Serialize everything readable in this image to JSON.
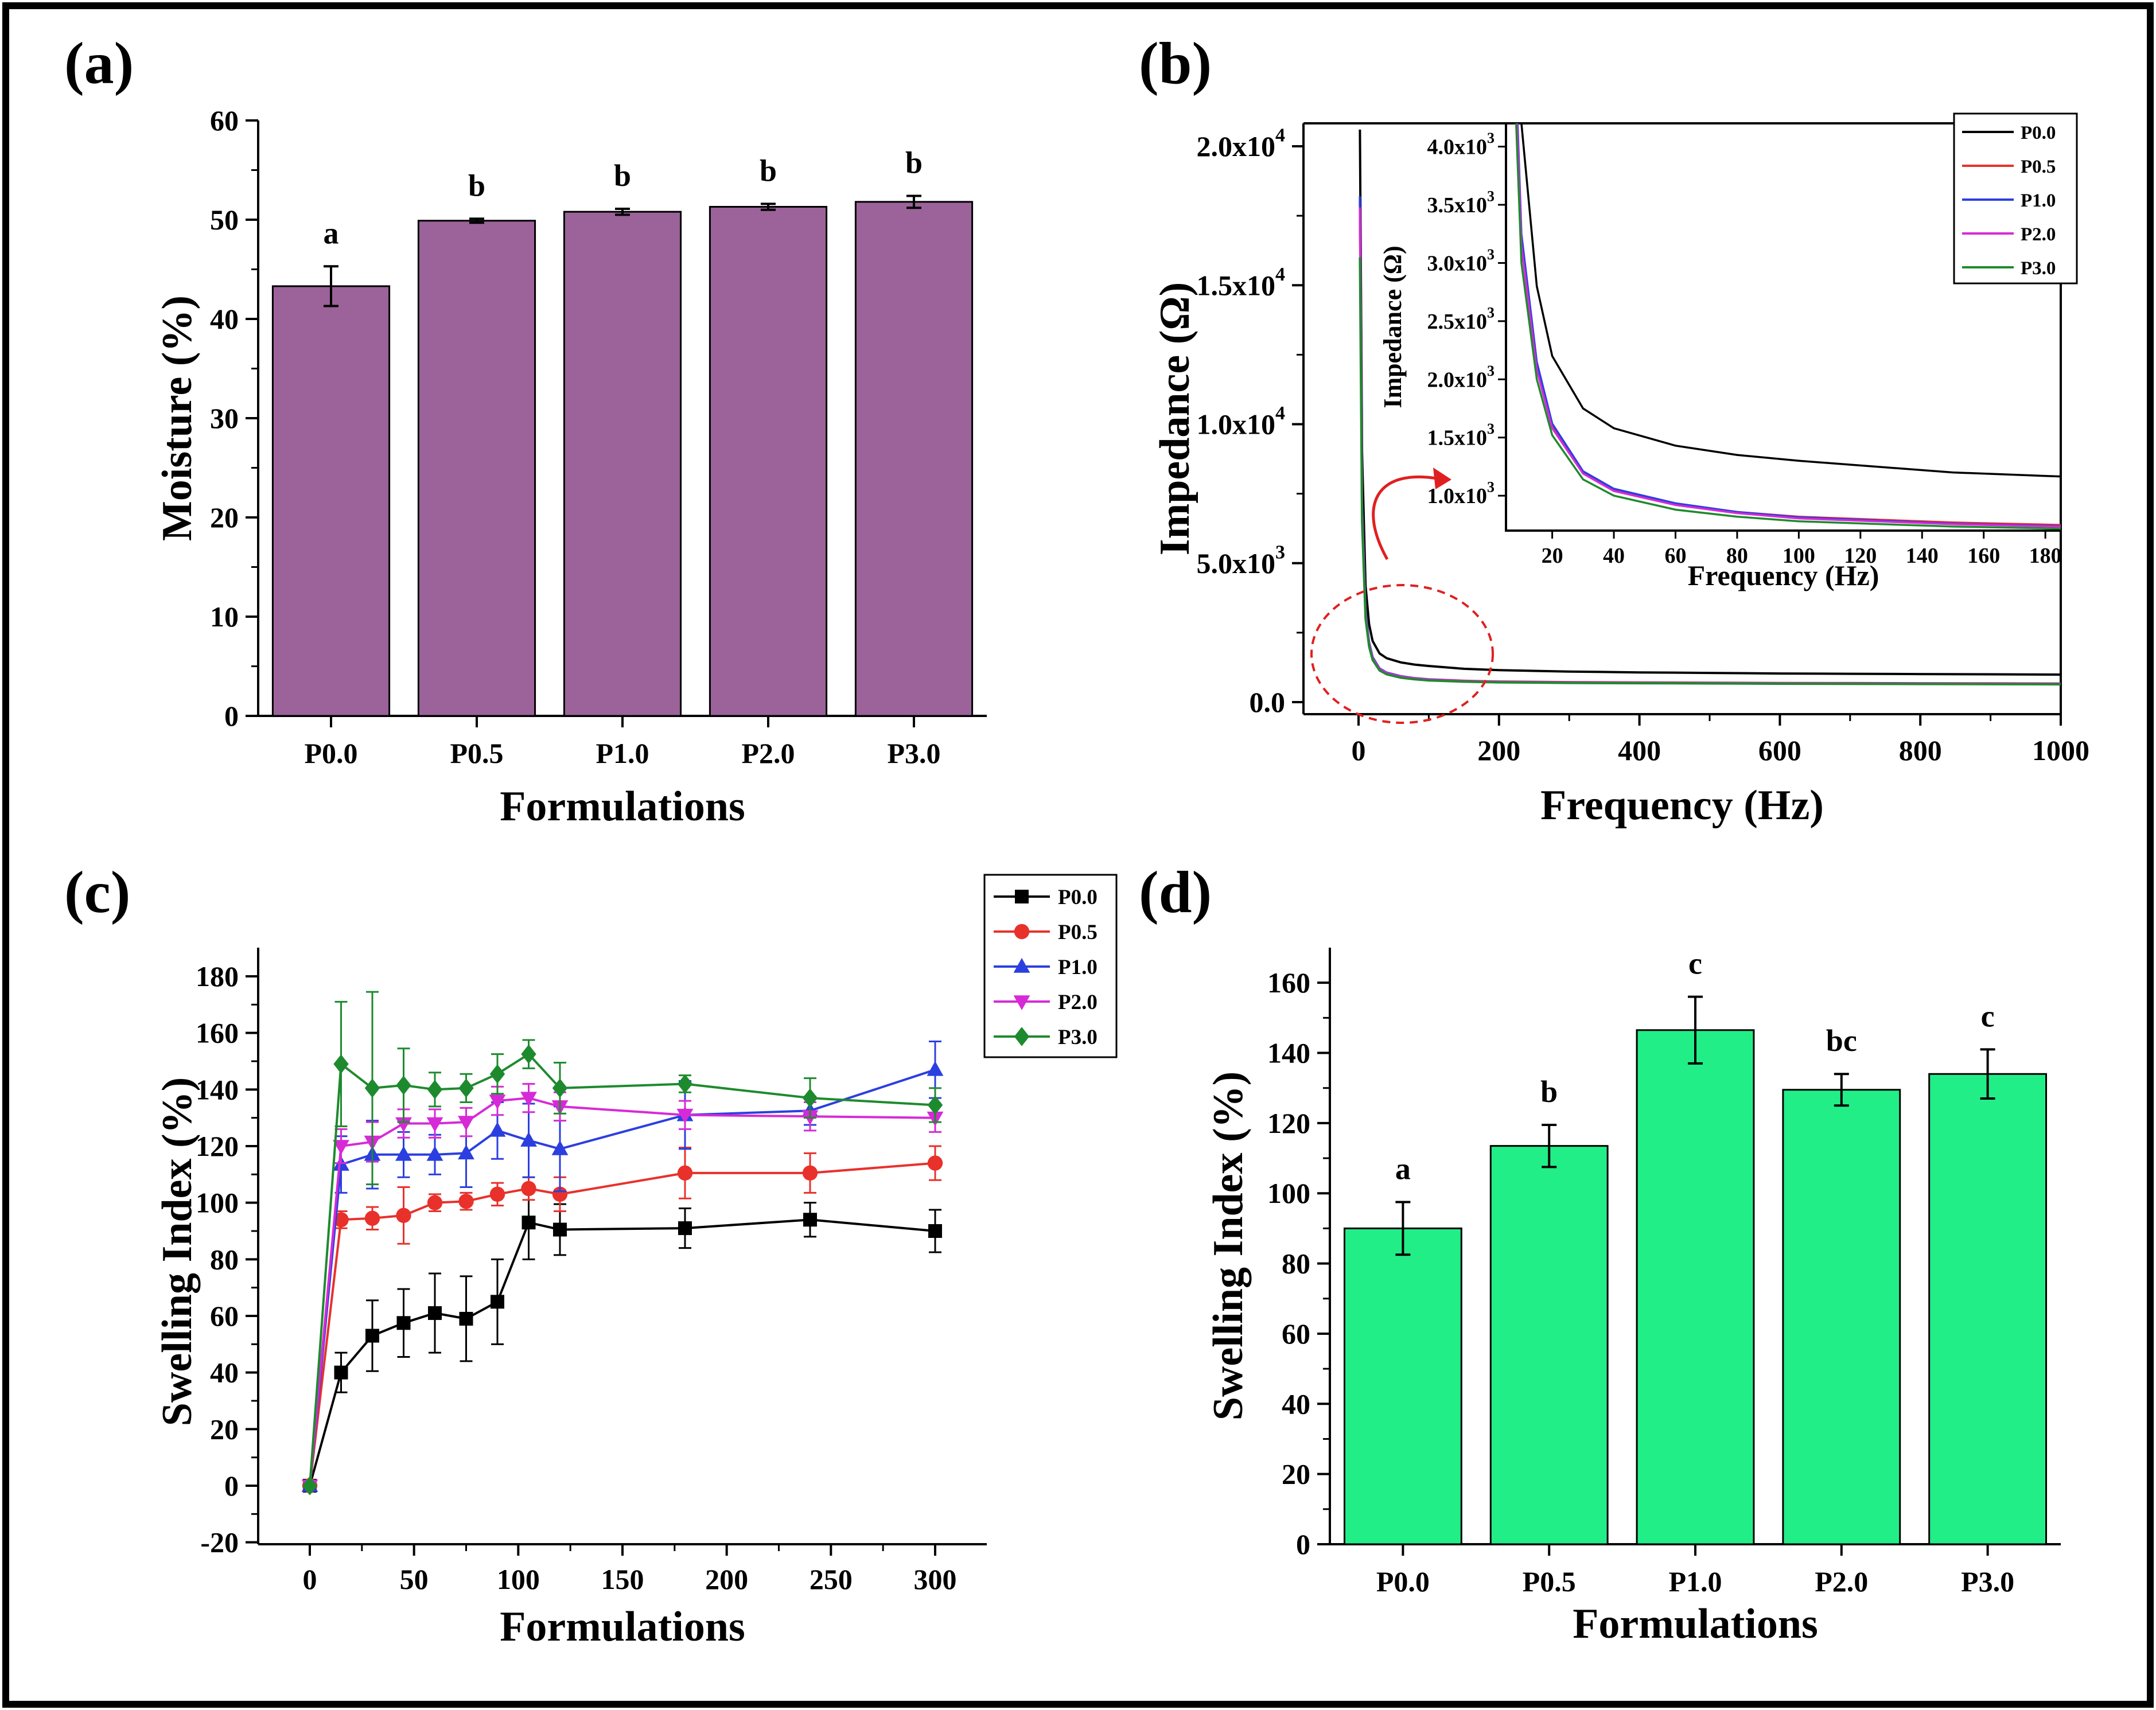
{
  "chart_data": [
    {
      "panel": "(a)",
      "type": "bar",
      "title": "(a)",
      "xlabel": "Formulations",
      "ylabel": "Moisture (%)",
      "ylim": [
        0,
        60
      ],
      "yticks": [
        0,
        10,
        20,
        30,
        40,
        50,
        60
      ],
      "categories": [
        "P0.0",
        "P0.5",
        "P1.0",
        "P2.0",
        "P3.0"
      ],
      "values": [
        43.3,
        49.9,
        50.8,
        51.3,
        51.8
      ],
      "errors": [
        2.0,
        0.2,
        0.3,
        0.3,
        0.6
      ],
      "significance": [
        "a",
        "b",
        "b",
        "b",
        "b"
      ],
      "bar_color": "#9B6399"
    },
    {
      "panel": "(b)",
      "type": "line",
      "title": "(b)",
      "xlabel": "Frequency (Hz)",
      "ylabel": "Impedance (Ω)",
      "xlim": [
        -30,
        1000
      ],
      "ylim": [
        -500,
        21000
      ],
      "xticks": [
        0,
        200,
        400,
        600,
        800,
        1000
      ],
      "yticks": [
        {
          "value": 0,
          "label": "0.0"
        },
        {
          "value": 5000,
          "label": "5.0x10",
          "exp": "3"
        },
        {
          "value": 10000,
          "label": "1.0x10",
          "exp": "4"
        },
        {
          "value": 15000,
          "label": "1.5x10",
          "exp": "4"
        },
        {
          "value": 20000,
          "label": "2.0x10",
          "exp": "4"
        }
      ],
      "series": [
        {
          "name": "P0.0",
          "color": "#000000",
          "x": [
            2,
            5,
            10,
            15,
            20,
            30,
            40,
            60,
            80,
            100,
            150,
            200,
            300,
            400,
            500,
            600,
            700,
            800,
            900,
            1000
          ],
          "y": [
            20600,
            9000,
            4200,
            2800,
            2200,
            1750,
            1580,
            1430,
            1350,
            1300,
            1200,
            1150,
            1100,
            1070,
            1050,
            1030,
            1020,
            1010,
            1000,
            990
          ]
        },
        {
          "name": "P0.5",
          "color": "#E8312B",
          "x": [
            2,
            5,
            10,
            15,
            20,
            30,
            40,
            60,
            80,
            100,
            150,
            200,
            300,
            400,
            500,
            600,
            700,
            800,
            900,
            1000
          ],
          "y": [
            18000,
            7000,
            3200,
            2100,
            1600,
            1200,
            1050,
            930,
            860,
            820,
            770,
            740,
            720,
            710,
            700,
            690,
            685,
            680,
            675,
            670
          ]
        },
        {
          "name": "P1.0",
          "color": "#2B3FE0",
          "x": [
            2,
            5,
            10,
            15,
            20,
            30,
            40,
            60,
            80,
            100,
            150,
            200,
            300,
            400,
            500,
            600,
            700,
            800,
            900,
            1000
          ],
          "y": [
            18200,
            7100,
            3250,
            2150,
            1620,
            1210,
            1060,
            935,
            860,
            815,
            760,
            730,
            710,
            700,
            690,
            680,
            675,
            670,
            665,
            660
          ]
        },
        {
          "name": "P2.0",
          "color": "#D62AD6",
          "x": [
            2,
            5,
            10,
            15,
            20,
            30,
            40,
            60,
            80,
            100,
            150,
            200,
            300,
            400,
            500,
            600,
            700,
            800,
            900,
            1000
          ],
          "y": [
            17800,
            6900,
            3150,
            2080,
            1580,
            1190,
            1040,
            920,
            850,
            805,
            755,
            725,
            705,
            695,
            685,
            675,
            670,
            665,
            660,
            655
          ]
        },
        {
          "name": "P3.0",
          "color": "#1E8A2E",
          "x": [
            2,
            5,
            10,
            15,
            20,
            30,
            40,
            60,
            80,
            100,
            150,
            200,
            300,
            400,
            500,
            600,
            700,
            800,
            900,
            1000
          ],
          "y": [
            16000,
            6500,
            3000,
            2000,
            1520,
            1140,
            1000,
            880,
            820,
            780,
            735,
            710,
            690,
            680,
            670,
            660,
            655,
            650,
            645,
            640
          ]
        }
      ],
      "inset": {
        "xlabel": "Frequency (Hz)",
        "ylabel": "Impedance (Ω)",
        "xlim": [
          5,
          185
        ],
        "ylim": [
          700,
          4200
        ],
        "xticks": [
          20,
          40,
          60,
          80,
          100,
          120,
          140,
          160,
          180
        ],
        "yticks": [
          {
            "value": 1000,
            "label": "1.0x10",
            "exp": "3"
          },
          {
            "value": 1500,
            "label": "1.5x10",
            "exp": "3"
          },
          {
            "value": 2000,
            "label": "2.0x10",
            "exp": "3"
          },
          {
            "value": 2500,
            "label": "2.5x10",
            "exp": "3"
          },
          {
            "value": 3000,
            "label": "3.0x10",
            "exp": "3"
          },
          {
            "value": 3500,
            "label": "3.5x10",
            "exp": "3"
          },
          {
            "value": 4000,
            "label": "4.0x10",
            "exp": "3"
          }
        ]
      },
      "legend": [
        "P0.0",
        "P0.5",
        "P1.0",
        "P2.0",
        "P3.0"
      ]
    },
    {
      "panel": "(c)",
      "type": "line",
      "title": "(c)",
      "xlabel": "Formulations",
      "ylabel": "Swelling Index (%)",
      "xlim": [
        -25,
        310
      ],
      "ylim": [
        -20,
        190
      ],
      "xticks": [
        0,
        50,
        100,
        150,
        200,
        250,
        300
      ],
      "yticks": [
        -20,
        0,
        20,
        40,
        60,
        80,
        100,
        120,
        140,
        160,
        180
      ],
      "x": [
        0,
        15,
        30,
        45,
        60,
        75,
        90,
        105,
        120,
        180,
        240,
        300
      ],
      "series": [
        {
          "name": "P0.0",
          "color": "#000000",
          "marker": "square",
          "values": [
            0,
            40,
            53,
            57.5,
            61,
            59,
            65,
            93,
            90.5,
            91,
            94,
            90
          ],
          "errors": [
            0,
            7,
            12.5,
            12,
            14,
            15,
            15,
            13,
            9,
            7,
            6,
            7.5
          ]
        },
        {
          "name": "P0.5",
          "color": "#E8312B",
          "marker": "circle",
          "values": [
            0,
            94,
            94.5,
            95.5,
            100,
            100.5,
            103,
            105,
            103,
            110.5,
            110.5,
            114
          ],
          "errors": [
            0,
            3,
            4,
            10,
            3,
            3,
            4,
            4,
            6,
            9,
            7,
            6
          ]
        },
        {
          "name": "P1.0",
          "color": "#2B3FE0",
          "marker": "triangle-up",
          "values": [
            0,
            113.5,
            117,
            117,
            117,
            117.5,
            125.5,
            122,
            119,
            131,
            132.5,
            147
          ],
          "errors": [
            0,
            10,
            12,
            8,
            7,
            12,
            10,
            13,
            15,
            12,
            5,
            10
          ]
        },
        {
          "name": "P2.0",
          "color": "#D62AD6",
          "marker": "triangle-down",
          "values": [
            0,
            120,
            121.5,
            128,
            128,
            128.5,
            136,
            137,
            134,
            131,
            130.5,
            130
          ],
          "errors": [
            0,
            6,
            7,
            5,
            5,
            5,
            5,
            5,
            5,
            5,
            5,
            5
          ]
        },
        {
          "name": "P3.0",
          "color": "#1E8A2E",
          "marker": "diamond",
          "values": [
            0,
            149,
            140.5,
            141.5,
            140,
            140.5,
            145.5,
            152.5,
            140.5,
            142,
            137,
            134.5
          ],
          "errors": [
            0,
            22,
            34,
            13,
            6,
            5,
            7,
            5,
            9,
            3,
            7,
            6
          ]
        }
      ],
      "legend": [
        "P0.0",
        "P0.5",
        "P1.0",
        "P2.0",
        "P3.0"
      ]
    },
    {
      "panel": "(d)",
      "type": "bar",
      "title": "(d)",
      "xlabel": "Formulations",
      "ylabel": "Swelling Index (%)",
      "ylim": [
        0,
        170
      ],
      "yticks": [
        0,
        20,
        40,
        60,
        80,
        100,
        120,
        140,
        160
      ],
      "categories": [
        "P0.0",
        "P0.5",
        "P1.0",
        "P2.0",
        "P3.0"
      ],
      "values": [
        90,
        113.5,
        146.5,
        129.5,
        134
      ],
      "errors": [
        7.5,
        6,
        9.5,
        4.5,
        7
      ],
      "significance": [
        "a",
        "b",
        "c",
        "bc",
        "c"
      ],
      "bar_color": "#22EE88"
    }
  ]
}
